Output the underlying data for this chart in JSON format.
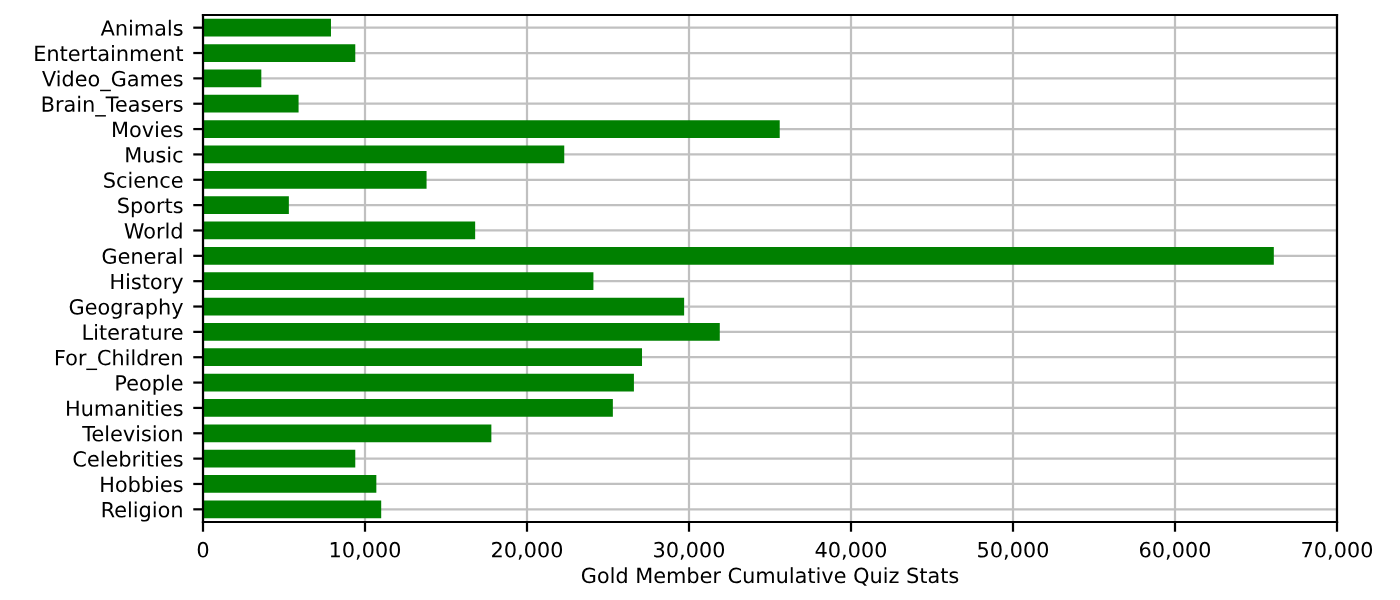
{
  "chart_data": {
    "type": "bar",
    "orientation": "horizontal",
    "xlabel": "Gold Member Cumulative Quiz Stats",
    "categories": [
      "Animals",
      "Entertainment",
      "Video_Games",
      "Brain_Teasers",
      "Movies",
      "Music",
      "Science",
      "Sports",
      "World",
      "General",
      "History",
      "Geography",
      "Literature",
      "For_Children",
      "People",
      "Humanities",
      "Television",
      "Celebrities",
      "Hobbies",
      "Religion"
    ],
    "values": [
      7900,
      9400,
      3600,
      5900,
      35600,
      22300,
      13800,
      5300,
      16800,
      66100,
      24100,
      29700,
      31900,
      27100,
      26600,
      25300,
      17800,
      9400,
      10700,
      11000
    ],
    "color": "#008000",
    "xlim": [
      0,
      70000
    ],
    "xticks": [
      {
        "value": 0,
        "label": "0"
      },
      {
        "value": 10000,
        "label": "10,000"
      },
      {
        "value": 20000,
        "label": "20,000"
      },
      {
        "value": 30000,
        "label": "30,000"
      },
      {
        "value": 40000,
        "label": "40,000"
      },
      {
        "value": 50000,
        "label": "50,000"
      },
      {
        "value": 60000,
        "label": "60,000"
      },
      {
        "value": 70000,
        "label": "70,000"
      }
    ],
    "grid": true,
    "legend": false
  }
}
